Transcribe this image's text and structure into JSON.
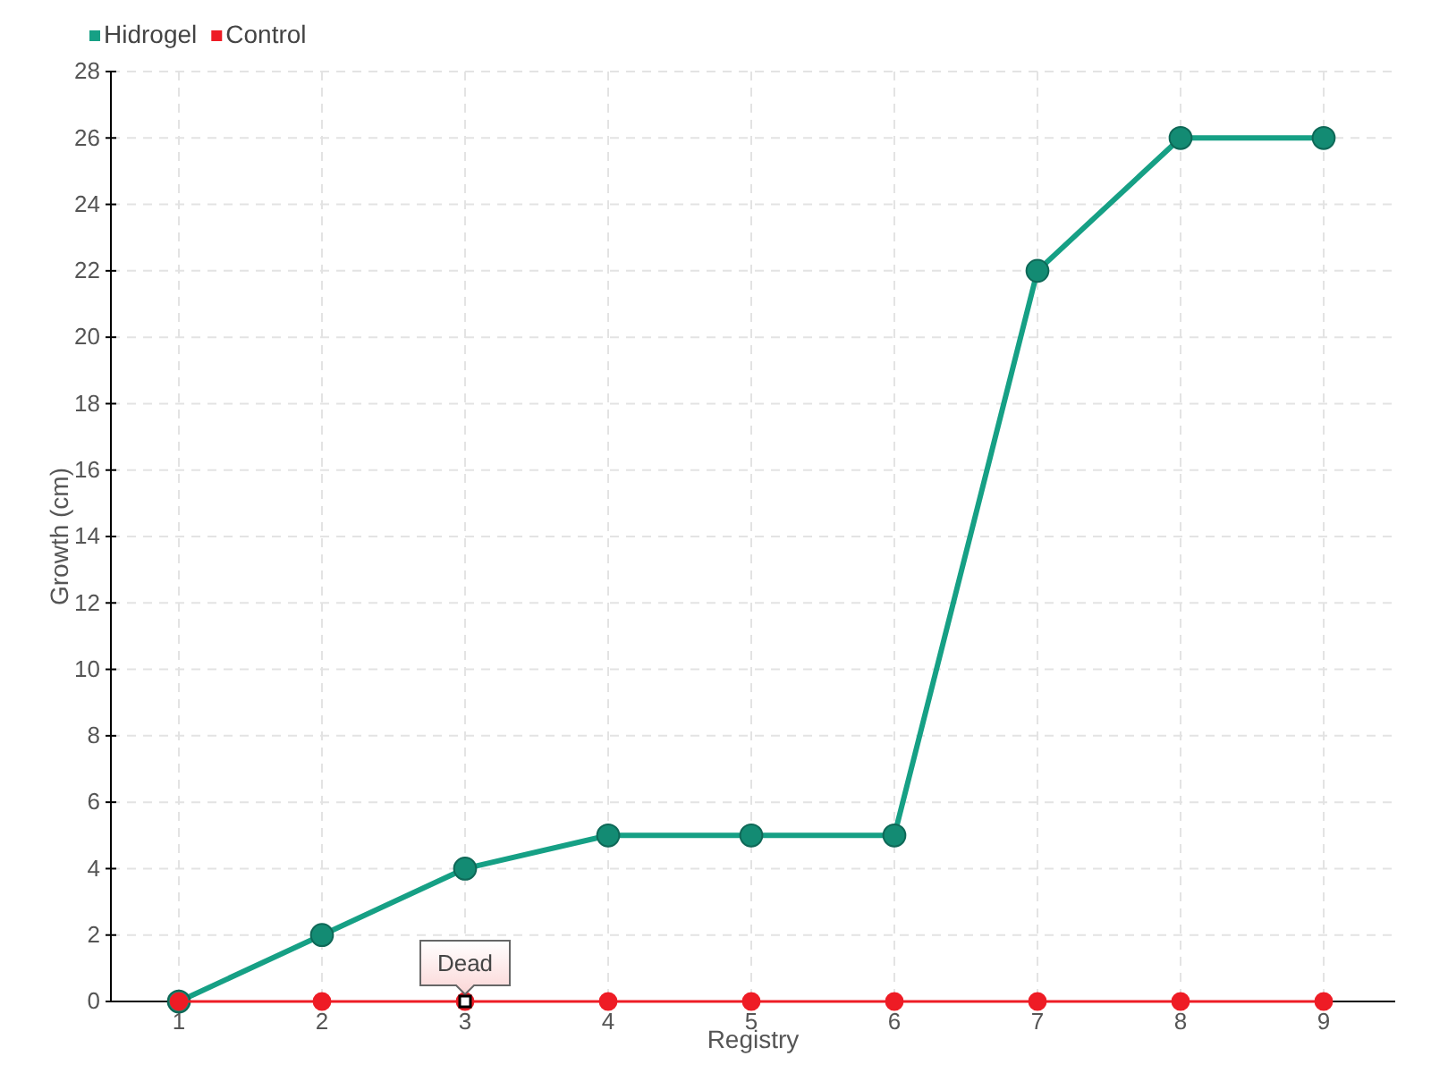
{
  "chart_data": {
    "type": "line",
    "xlabel": "Registry",
    "ylabel": "Growth (cm)",
    "categories": [
      "1",
      "2",
      "3",
      "4",
      "5",
      "6",
      "7",
      "8",
      "9"
    ],
    "series": [
      {
        "name": "Hidrogel",
        "color": "#16a085",
        "values": [
          0,
          2,
          4,
          5,
          5,
          5,
          22,
          26,
          26
        ]
      },
      {
        "name": "Control",
        "color": "#ee1c25",
        "values": [
          0,
          0,
          0,
          0,
          0,
          0,
          0,
          0,
          0
        ]
      }
    ],
    "ylim": [
      0,
      28
    ],
    "yticks": [
      0,
      2,
      4,
      6,
      8,
      10,
      12,
      14,
      16,
      18,
      20,
      22,
      24,
      26,
      28
    ],
    "grid": true,
    "legend": "top left",
    "marker": "circle",
    "annotations": [
      {
        "text": "Dead",
        "x": "3",
        "y": 0
      }
    ]
  }
}
